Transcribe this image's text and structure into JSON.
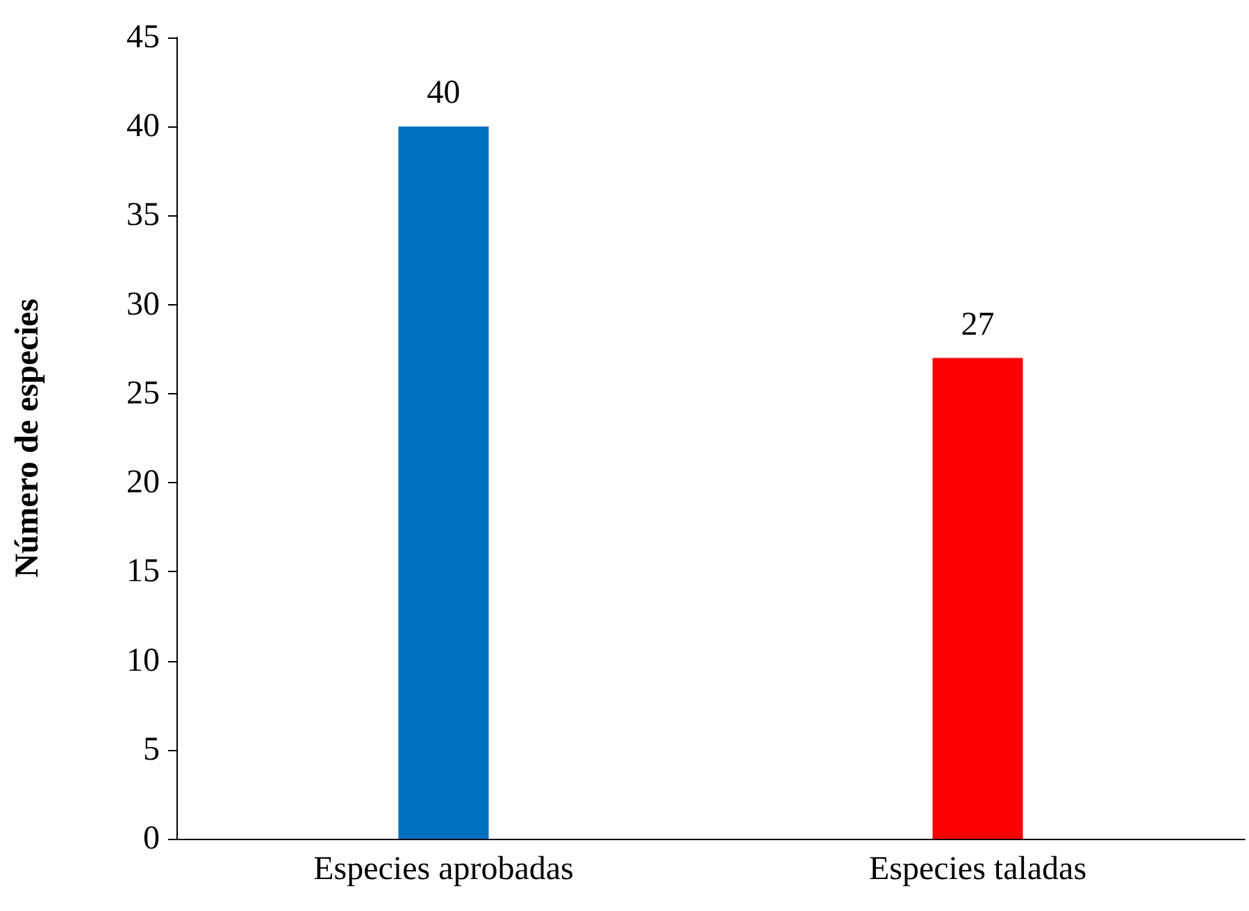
{
  "chart_data": {
    "type": "bar",
    "ylabel": "Número de especies",
    "categories": [
      "Especies aprobadas",
      "Especies taladas"
    ],
    "values": [
      40,
      27
    ],
    "colors": [
      "#0070c0",
      "#ff0000"
    ],
    "ylim": [
      0,
      45
    ],
    "yticks": [
      0,
      5,
      10,
      15,
      20,
      25,
      30,
      35,
      40,
      45
    ],
    "data_labels": true
  }
}
